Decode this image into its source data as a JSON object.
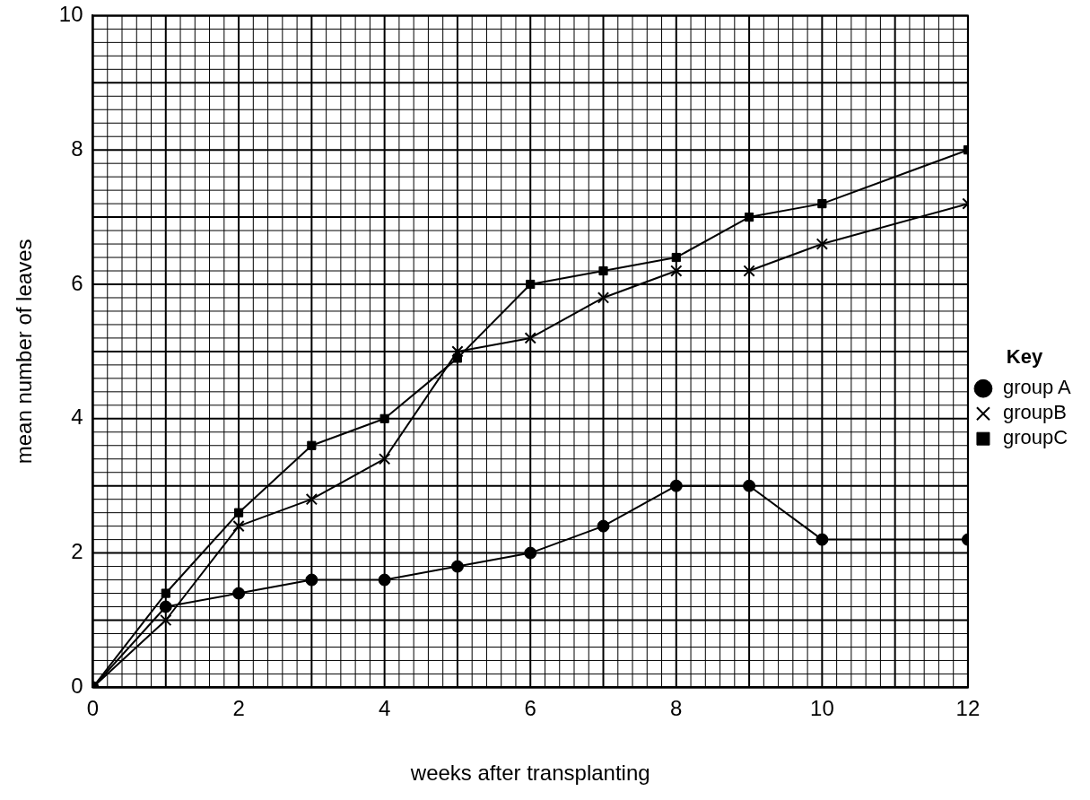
{
  "chart_data": {
    "type": "line",
    "xlabel": "weeks after transplanting",
    "ylabel": "mean number of leaves",
    "legend_title": "Key",
    "legend": "right",
    "grid": true,
    "line_style": "solid",
    "xlim": [
      0,
      12
    ],
    "xticks": [
      0,
      2,
      4,
      6,
      8,
      10,
      12
    ],
    "ylim": [
      0,
      10
    ],
    "yticks": [
      0,
      2,
      4,
      6,
      8,
      10
    ],
    "series": [
      {
        "name": "group A",
        "color": "#000000",
        "marker": "circle",
        "x": [
          0,
          1,
          2,
          3,
          4,
          5,
          6,
          7,
          8,
          9,
          10,
          12
        ],
        "values": [
          0,
          1.2,
          1.4,
          1.6,
          1.6,
          1.8,
          2.0,
          2.4,
          3.0,
          3.0,
          2.2,
          2.2
        ]
      },
      {
        "name": "groupB",
        "color": "#000000",
        "marker": "cross",
        "x": [
          0,
          1,
          2,
          3,
          4,
          5,
          6,
          7,
          8,
          9,
          10,
          12
        ],
        "values": [
          0,
          1.0,
          2.4,
          2.8,
          3.4,
          5.0,
          5.2,
          5.8,
          6.2,
          6.2,
          6.6,
          7.2
        ]
      },
      {
        "name": "groupC",
        "color": "#000000",
        "marker": "square",
        "x": [
          0,
          1,
          2,
          3,
          4,
          5,
          6,
          7,
          8,
          9,
          10,
          12
        ],
        "values": [
          0,
          1.4,
          2.6,
          3.6,
          4.0,
          4.9,
          6.0,
          6.2,
          6.4,
          7.0,
          7.2,
          8.0
        ]
      }
    ]
  }
}
